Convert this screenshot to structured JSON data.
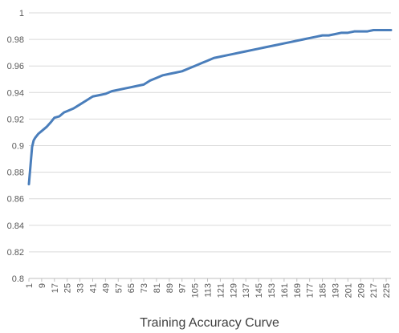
{
  "chart_data": {
    "type": "line",
    "title": "Training Accuracy Curve",
    "xlabel": "",
    "ylabel": "",
    "x_range": [
      1,
      228
    ],
    "ylim": [
      0.8,
      1.0
    ],
    "y_ticks": [
      0.8,
      0.82,
      0.84,
      0.86,
      0.88,
      0.9,
      0.92,
      0.94,
      0.96,
      0.98,
      1
    ],
    "y_tick_labels": [
      "0.8",
      "0.82",
      "0.84",
      "0.86",
      "0.88",
      "0.9",
      "0.92",
      "0.94",
      "0.96",
      "0.98",
      "1"
    ],
    "x_ticks": [
      1,
      9,
      17,
      25,
      33,
      41,
      49,
      57,
      65,
      73,
      81,
      89,
      97,
      105,
      113,
      121,
      129,
      137,
      145,
      153,
      161,
      169,
      177,
      185,
      193,
      201,
      209,
      217,
      225
    ],
    "x_tick_labels": [
      "1",
      "9",
      "17",
      "25",
      "33",
      "41",
      "49",
      "57",
      "65",
      "73",
      "81",
      "89",
      "97",
      "105",
      "113",
      "121",
      "129",
      "137",
      "145",
      "153",
      "161",
      "169",
      "177",
      "185",
      "193",
      "201",
      "209",
      "217",
      "225"
    ],
    "grid": true,
    "legend": "none",
    "line_color": "#4a7ebb",
    "series": [
      {
        "x": [
          1,
          2,
          3,
          4,
          5,
          7,
          9,
          12,
          15,
          17,
          20,
          23,
          25,
          29,
          33,
          37,
          41,
          45,
          49,
          53,
          57,
          61,
          65,
          69,
          73,
          77,
          81,
          85,
          89,
          93,
          97,
          101,
          105,
          109,
          113,
          117,
          121,
          125,
          129,
          133,
          137,
          141,
          145,
          149,
          153,
          157,
          161,
          165,
          169,
          173,
          177,
          181,
          185,
          189,
          193,
          197,
          201,
          205,
          209,
          213,
          217,
          221,
          225,
          228
        ],
        "y": [
          0.871,
          0.885,
          0.899,
          0.904,
          0.906,
          0.909,
          0.911,
          0.914,
          0.918,
          0.921,
          0.922,
          0.925,
          0.926,
          0.928,
          0.931,
          0.934,
          0.937,
          0.938,
          0.939,
          0.941,
          0.942,
          0.943,
          0.944,
          0.945,
          0.946,
          0.949,
          0.951,
          0.953,
          0.954,
          0.955,
          0.956,
          0.958,
          0.96,
          0.962,
          0.964,
          0.966,
          0.967,
          0.968,
          0.969,
          0.97,
          0.971,
          0.972,
          0.973,
          0.974,
          0.975,
          0.976,
          0.977,
          0.978,
          0.979,
          0.98,
          0.981,
          0.982,
          0.983,
          0.983,
          0.984,
          0.985,
          0.985,
          0.986,
          0.986,
          0.986,
          0.987,
          0.987,
          0.987,
          0.987
        ]
      }
    ]
  }
}
